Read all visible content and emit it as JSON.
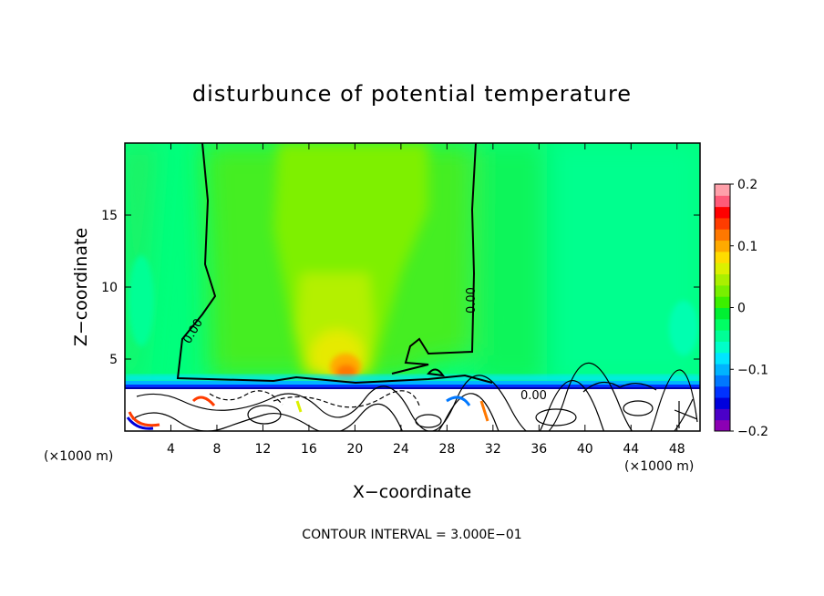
{
  "chart_data": {
    "type": "heatmap",
    "title": "disturbunce of potential temperature",
    "xlabel": "X−coordinate",
    "ylabel": "Z−coordinate",
    "x_unit": "(×1000 m)",
    "y_unit": "(×1000 m)",
    "xlim": [
      0,
      50
    ],
    "ylim": [
      0,
      20
    ],
    "x_ticks": [
      4,
      8,
      12,
      16,
      20,
      24,
      28,
      32,
      36,
      40,
      44,
      48
    ],
    "y_ticks": [
      5,
      10,
      15
    ],
    "colorbar": {
      "range": [
        -0.2,
        0.2
      ],
      "ticks": [
        {
          "value": 0.2,
          "label": "0.2"
        },
        {
          "value": 0.1,
          "label": "0.1"
        },
        {
          "value": 0,
          "label": "0"
        },
        {
          "value": -0.1,
          "label": "−0.1"
        },
        {
          "value": -0.2,
          "label": "−0.2"
        }
      ],
      "colors": [
        "#8c00b4",
        "#4b00c8",
        "#0000dc",
        "#0032ff",
        "#0078ff",
        "#00b4ff",
        "#00e6ff",
        "#00ffc8",
        "#00ff96",
        "#00ff64",
        "#00f032",
        "#3cf000",
        "#78f000",
        "#aaf000",
        "#dcf000",
        "#ffdc00",
        "#ffaa00",
        "#ff7800",
        "#ff3c00",
        "#ff0000",
        "#ff5a78",
        "#ffa0aa"
      ]
    },
    "contour_labels": [
      "0.00",
      "0.00",
      "0.00"
    ],
    "annotation": "CONTOUR INTERVAL = 3.000E−01"
  }
}
